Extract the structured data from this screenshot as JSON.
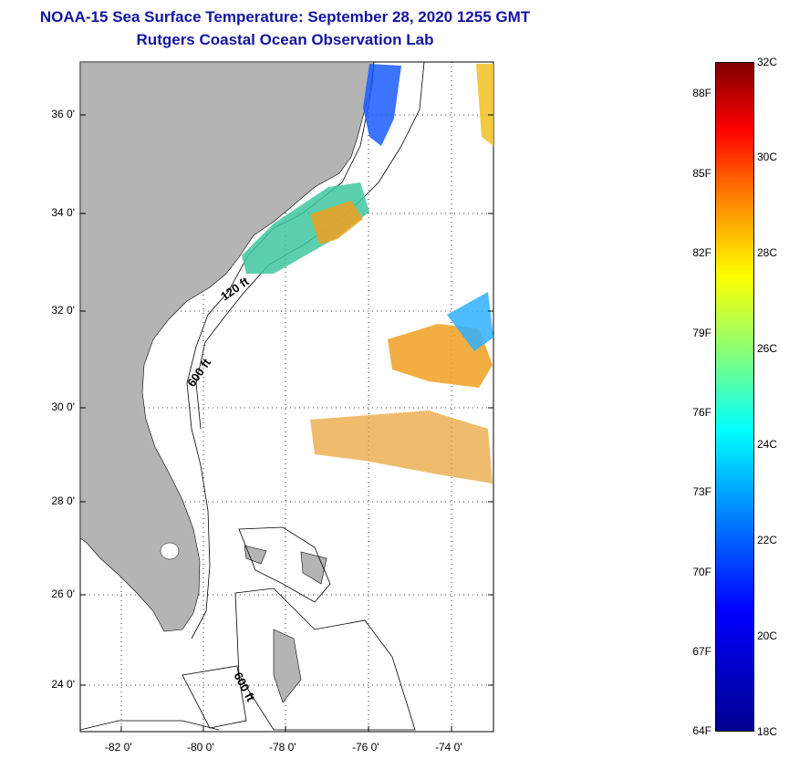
{
  "header": {
    "title": "NOAA-15 Sea Surface Temperature:  September 28, 2020 1255 GMT",
    "subtitle": "Rutgers Coastal Ocean Observation Lab"
  },
  "map": {
    "lat_ticks": [
      "36 0'",
      "34 0'",
      "32 0'",
      "30 0'",
      "28 0'",
      "26 0'",
      "24 0'"
    ],
    "lon_ticks": [
      "-82 0'",
      "-80 0'",
      "-78 0'",
      "-76 0'",
      "-74 0'"
    ],
    "contour_labels": [
      "120 ft",
      "600 ft",
      "600 ft"
    ],
    "land_color": "#b4b4b4",
    "lat_range": [
      23,
      37.2
    ],
    "lon_range": [
      -83,
      -73
    ]
  },
  "colorbar": {
    "f_labels": [
      "88F",
      "85F",
      "82F",
      "79F",
      "76F",
      "73F",
      "70F",
      "67F",
      "64F"
    ],
    "c_labels": [
      "32C",
      "30C",
      "28C",
      "26C",
      "24C",
      "22C",
      "20C",
      "18C"
    ],
    "range_c": [
      18,
      32
    ],
    "colormap": "jet"
  }
}
